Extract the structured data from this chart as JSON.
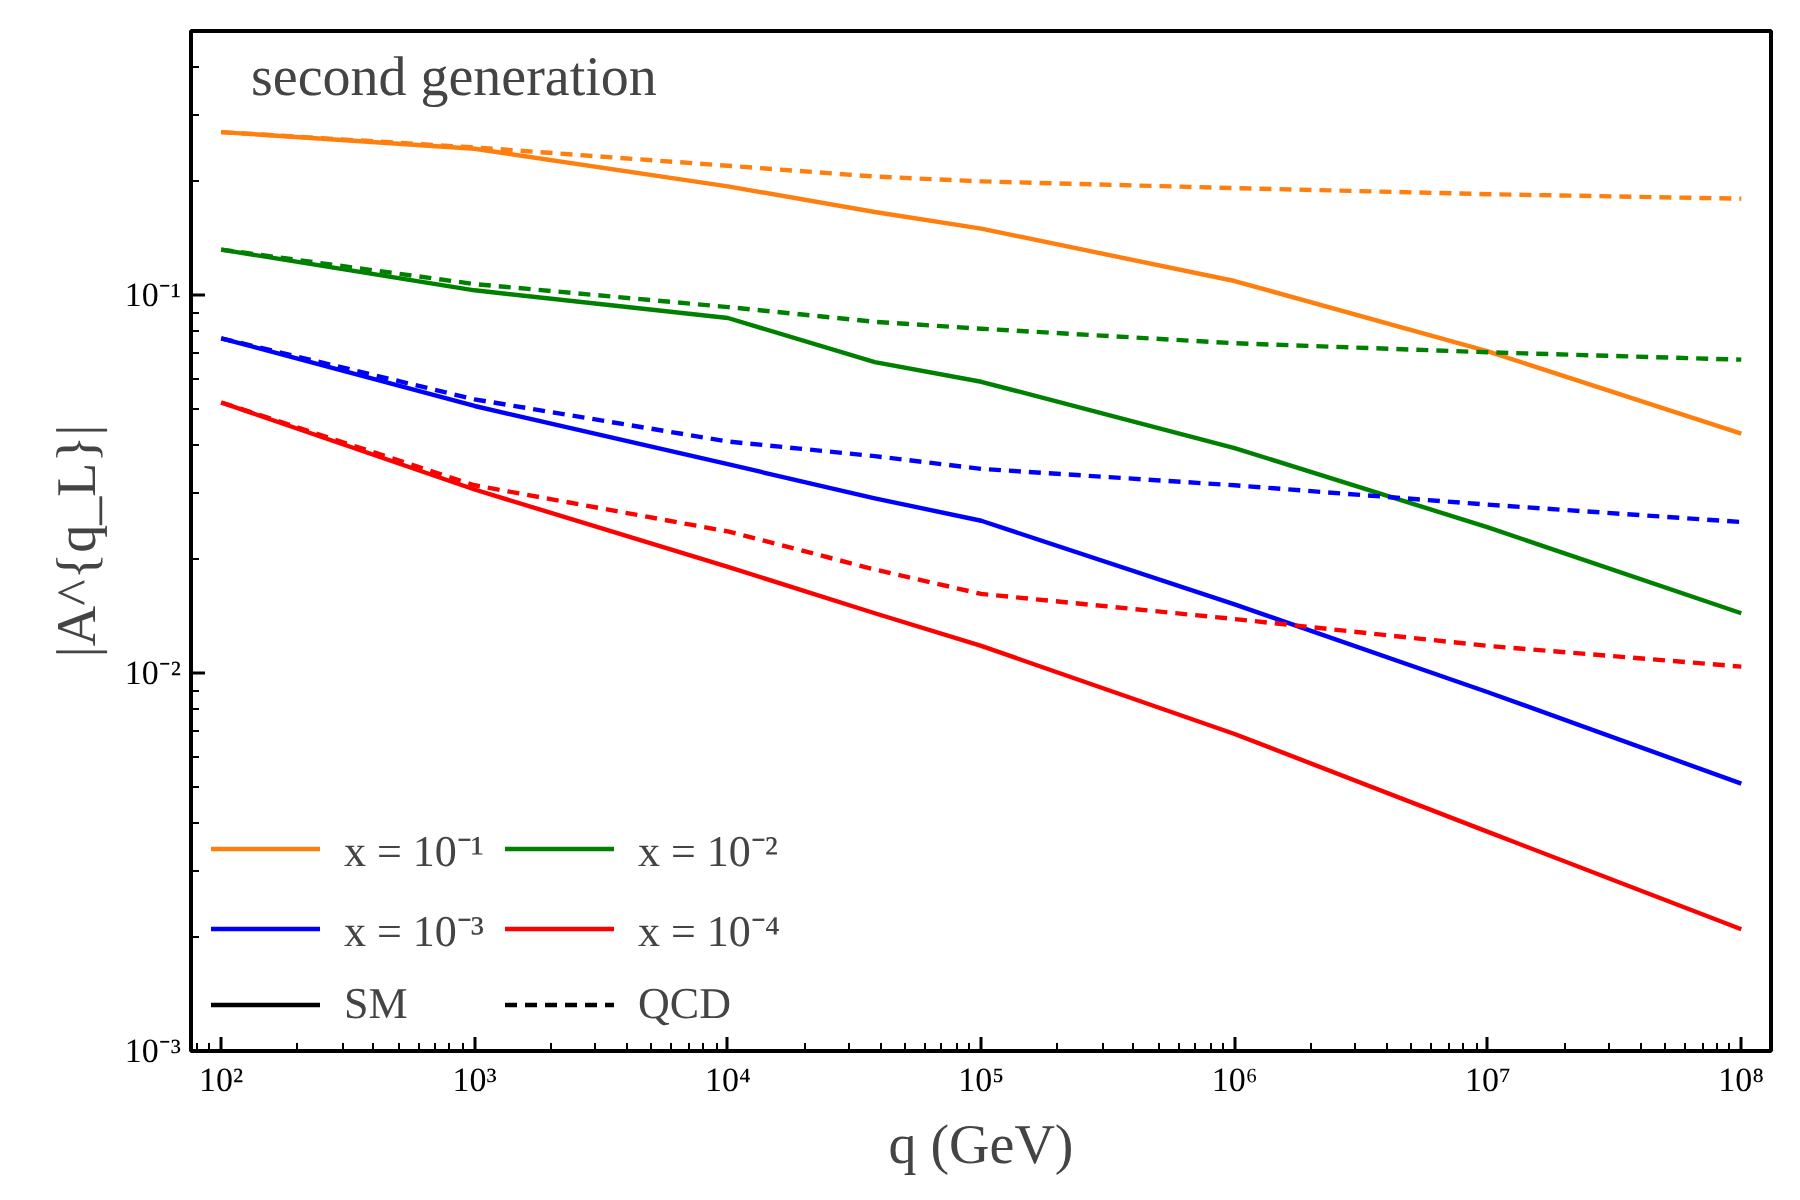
{
  "chart_data": {
    "type": "line",
    "title": "second generation",
    "xlabel": "q (GeV)",
    "ylabel": "|A^{q_L}|",
    "log": "xy",
    "grid": false,
    "legend": "bottom left",
    "line_style": "solid",
    "x": [
      100,
      1000,
      10000,
      38000,
      100000,
      1000000,
      10000000,
      100000000
    ],
    "xlim": [
      76,
      131000000
    ],
    "ylim": [
      0.001,
      0.5
    ],
    "xticks": [
      {
        "value": 100,
        "label": "10²"
      },
      {
        "value": 1000,
        "label": "10³"
      },
      {
        "value": 10000,
        "label": "10⁴"
      },
      {
        "value": 100000,
        "label": "10⁵"
      },
      {
        "value": 1000000,
        "label": "10⁶"
      },
      {
        "value": 10000000,
        "label": "10⁷"
      },
      {
        "value": 100000000,
        "label": "10⁸"
      }
    ],
    "yticks": [
      {
        "value": 0.001,
        "label": "10⁻³"
      },
      {
        "value": 0.01,
        "label": "10⁻²"
      },
      {
        "value": 0.1,
        "label": "10⁻¹"
      }
    ],
    "series": [
      {
        "name": "x = 10⁻¹",
        "color": "#ff7f0e",
        "values": [
          0.27,
          0.244,
          0.194,
          0.166,
          0.15,
          0.109,
          0.071,
          0.043
        ]
      },
      {
        "name": "x = 10⁻²",
        "color": "#008000",
        "values": [
          0.132,
          0.103,
          0.087,
          0.0665,
          0.059,
          0.0394,
          0.0243,
          0.0144
        ]
      },
      {
        "name": "x = 10⁻³",
        "color": "#0000ff",
        "values": [
          0.0769,
          0.0509,
          0.0357,
          0.029,
          0.0253,
          0.0152,
          0.0089,
          0.0051
        ]
      },
      {
        "name": "x = 10⁻⁴",
        "color": "#ff0000",
        "values": [
          0.052,
          0.0306,
          0.0191,
          0.0144,
          0.0118,
          0.0069,
          0.0038,
          0.0021
        ]
      },
      {
        "color": "#ff7f0e",
        "line_style": "dashed",
        "values": [
          0.27,
          0.246,
          0.22,
          0.206,
          0.2,
          0.192,
          0.185,
          0.18
        ]
      },
      {
        "color": "#008000",
        "line_style": "dashed",
        "values": [
          0.132,
          0.107,
          0.093,
          0.085,
          0.0815,
          0.0746,
          0.0706,
          0.0675
        ]
      },
      {
        "color": "#0000ff",
        "line_style": "dashed",
        "values": [
          0.0769,
          0.053,
          0.041,
          0.0375,
          0.0347,
          0.0314,
          0.0279,
          0.0251
        ]
      },
      {
        "color": "#ff0000",
        "line_style": "dashed",
        "values": [
          0.052,
          0.0314,
          0.0237,
          0.0188,
          0.0162,
          0.0139,
          0.0118,
          0.0104
        ]
      },
      {
        "name": "SM",
        "color": "#000000",
        "line_style": "solid",
        "values": [
          null,
          null,
          null,
          null,
          null,
          null,
          null,
          null
        ]
      },
      {
        "name": "QCD",
        "color": "#000000",
        "line_style": "dashed",
        "values": [
          null,
          null,
          null,
          null,
          null,
          null,
          null,
          null
        ]
      }
    ]
  }
}
